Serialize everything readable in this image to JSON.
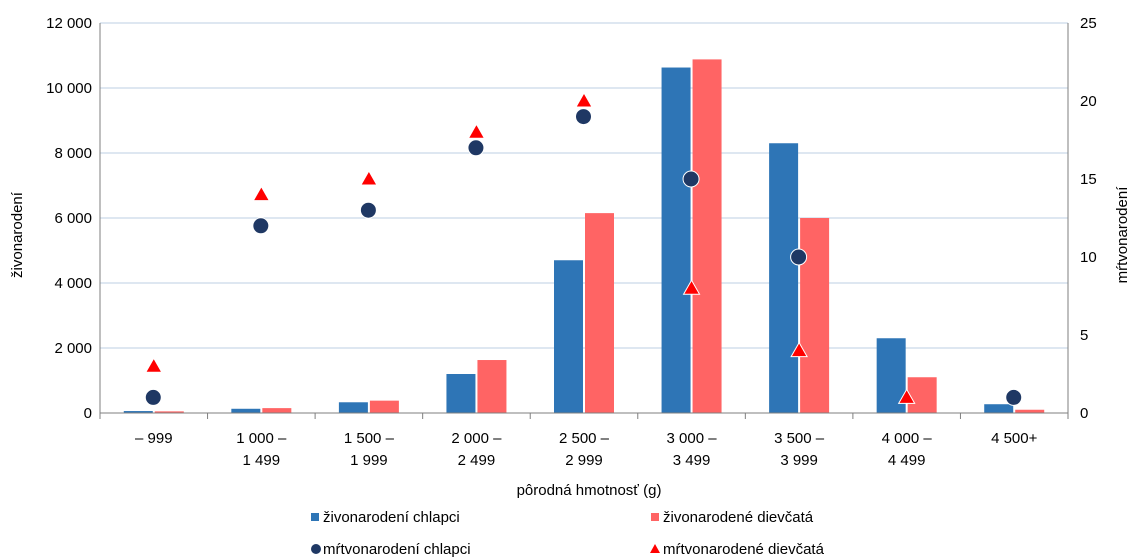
{
  "chart_data": {
    "type": "bar",
    "categories": [
      [
        "– 999"
      ],
      [
        "1 000 –",
        "1 499"
      ],
      [
        "1 500 –",
        "1 999"
      ],
      [
        "2 000 –",
        "2 499"
      ],
      [
        "2 500 –",
        "2 999"
      ],
      [
        "3 000 –",
        "3 499"
      ],
      [
        "3 500 –",
        "3 999"
      ],
      [
        "4 000 –",
        "4 499"
      ],
      [
        "4 500+"
      ]
    ],
    "xlabel": "pôrodná hmotnosť (g)",
    "ylabel": "živonarodení",
    "y2label": "mŕtvonarodení",
    "ylim": [
      0,
      12000
    ],
    "y2lim": [
      0,
      25
    ],
    "yticks": [
      0,
      2000,
      4000,
      6000,
      8000,
      10000,
      12000
    ],
    "ytick_labels": [
      "0",
      "2 000",
      "4 000",
      "6 000",
      "8 000",
      "10 000",
      "12 000"
    ],
    "y2ticks": [
      0,
      5,
      10,
      15,
      20,
      25
    ],
    "y2tick_labels": [
      "0",
      "5",
      "10",
      "15",
      "20",
      "25"
    ],
    "grid": true,
    "legend_position": "bottom",
    "series": [
      {
        "name": "živonarodení chlapci",
        "kind": "bar",
        "axis": "left",
        "color": "#2E75B6",
        "values": [
          60,
          130,
          330,
          1200,
          4700,
          10630,
          8300,
          2300,
          270
        ]
      },
      {
        "name": "živonarodené dievčatá",
        "kind": "bar",
        "axis": "left",
        "color": "#FF6464",
        "values": [
          50,
          150,
          380,
          1630,
          6150,
          10880,
          6000,
          1100,
          100
        ]
      },
      {
        "name": "mŕtvonarodení chlapci",
        "kind": "scatter",
        "marker": "circle",
        "axis": "right",
        "color": "#1F3864",
        "values": [
          1,
          12,
          13,
          17,
          19,
          15,
          10,
          null,
          1
        ]
      },
      {
        "name": "mŕtvonarodené dievčatá",
        "kind": "scatter",
        "marker": "triangle",
        "axis": "right",
        "color": "#FF0000",
        "values": [
          3,
          14,
          15,
          18,
          20,
          8,
          4,
          1,
          null
        ]
      }
    ]
  }
}
